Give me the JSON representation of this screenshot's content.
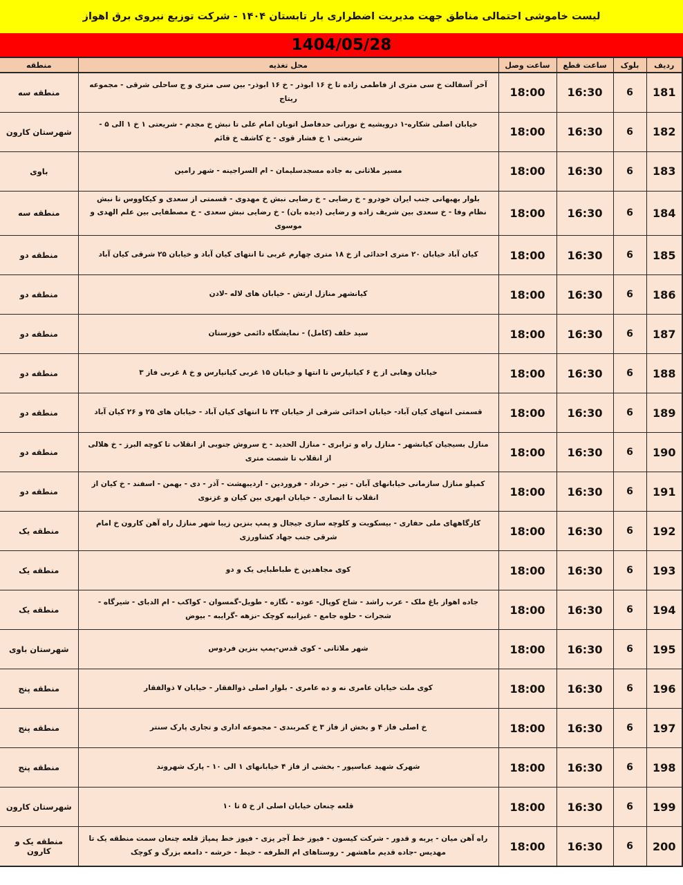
{
  "title": "لیست خاموشی احتمالی مناطق جهت مدیریت اضطراری بار تابستان ۱۴۰۴ - شرکت توزیع نیروی برق اهواز",
  "date": "1404/05/28",
  "colors": {
    "yellow": "#ffff00",
    "red": "#ff0000",
    "header-peach": "#f4cbac",
    "row-peach": "#fbe4d4",
    "border": "#262626"
  },
  "table": {
    "headers": {
      "radif": "ردیف",
      "block": "بلوک",
      "cut": "ساعت قطع",
      "reconnect": "ساعت وصل",
      "location": "محل تغذیه",
      "region": "منطقه"
    },
    "rows": [
      {
        "radif": "181",
        "block": "6",
        "cut": "16:30",
        "reconnect": "18:00",
        "location": "آخر آسفالت خ سی متری از فاطمی زاده تا خ ۱۶ ابوذر - خ ۱۶ ابوذر- بین سی متری و ج ساحلی شرقی - مجموعه ریتاج",
        "region": "منطقه سه"
      },
      {
        "radif": "182",
        "block": "6",
        "cut": "16:30",
        "reconnect": "18:00",
        "location": "خیابان اصلی شکاره-۱ درویشیه خ نورانی حدفاصل اتوبان امام علی تا نبش خ مجدم - شریعتی ۱ خ ۱ الی ۵ - شریعتی ۱ خ فشار قوی - خ کاشف خ قائم",
        "region": "شهرستان کارون"
      },
      {
        "radif": "183",
        "block": "6",
        "cut": "16:30",
        "reconnect": "18:00",
        "location": "مسیر ملاثانی به جاده مسجدسلیمان - ام السراجینه - شهر رامین",
        "region": "باوی"
      },
      {
        "radif": "184",
        "block": "6",
        "cut": "16:30",
        "reconnect": "18:00",
        "location": "بلوار بهبهانی جنب ایران خودرو - خ رضایی - خ رضایی نبش خ مهدوی - قسمتی از سعدی و کیکاووس تا نبش نظام وفا - خ سعدی بین شریف زاده و رضایی (دیده بان) - خ رضایی نبش سعدی - خ مصطفایی بین علم الهدی و موسوی",
        "region": "منطقه سه"
      },
      {
        "radif": "185",
        "block": "6",
        "cut": "16:30",
        "reconnect": "18:00",
        "location": "کیان آباد خیابان ۲۰ متری احدائی از خ ۱۸ متری چهارم غربی تا انتهای کیان آباد و خیابان ۲۵ شرقی کیان آباد",
        "region": "منطقه دو"
      },
      {
        "radif": "186",
        "block": "6",
        "cut": "16:30",
        "reconnect": "18:00",
        "location": "کیانشهر منازل ارتش - خیابان های لاله -لادن",
        "region": "منطقه دو"
      },
      {
        "radif": "187",
        "block": "6",
        "cut": "16:30",
        "reconnect": "18:00",
        "location": "سید خلف (کامل) - نمایشگاه دائمی خوزستان",
        "region": "منطقه دو"
      },
      {
        "radif": "188",
        "block": "6",
        "cut": "16:30",
        "reconnect": "18:00",
        "location": "خیابان وهابی از خ ۶ کیانپارس تا انتها و خیابان ۱۵ غربی کیانپارس و خ ۸ غربی فاز ۳",
        "region": "منطقه دو"
      },
      {
        "radif": "189",
        "block": "6",
        "cut": "16:30",
        "reconnect": "18:00",
        "location": "قسمتی انتهای کیان آباد- خیابان احدائی شرقی از خیابان ۲۴ تا انتهای کیان آباد - خیابان های ۲۵ و ۲۶ کیان آباد",
        "region": "منطقه دو"
      },
      {
        "radif": "190",
        "block": "6",
        "cut": "16:30",
        "reconnect": "18:00",
        "location": "منازل بسیجیان کیانشهر - منازل راه و ترابری - منازل الحدید - خ سروش جنوبی از انقلاب تا کوچه البرز - خ هلالی از انقلاب تا شصت متری",
        "region": "منطقه دو"
      },
      {
        "radif": "191",
        "block": "6",
        "cut": "16:30",
        "reconnect": "18:00",
        "location": "کمپلو منازل سازمانی خیابانهای آبان - تیر - خرداد - فروردین - اردیبهشت - آذر - دی - بهمن - اسفند - خ کیان از انقلاب تا انصاری - خیابان ابهری بین کیان و غزنوی",
        "region": "منطقه دو"
      },
      {
        "radif": "192",
        "block": "6",
        "cut": "16:30",
        "reconnect": "18:00",
        "location": "کارگاههای ملی حفاری - بیسکویت و کلوچه سازی جیجال و پمپ بنزین زیبا شهر منازل راه آهن کارون خ امام شرقی جنب جهاد کشاورزی",
        "region": "منطقه یک"
      },
      {
        "radif": "193",
        "block": "6",
        "cut": "16:30",
        "reconnect": "18:00",
        "location": "کوی مجاهدین خ طباطبایی یک و دو",
        "region": "منطقه یک"
      },
      {
        "radif": "194",
        "block": "6",
        "cut": "16:30",
        "reconnect": "18:00",
        "location": "جاده اهواز باغ ملک - عرب راشد - شاخ کوپال- عوده - نگازه - طویل-گمسوان - کواکب - ام الدبای - شیرگاه - شجرات - حلوه جامع - غیزانیه کوچک -نزهه -گرایبه - بیوض",
        "region": "منطقه یک"
      },
      {
        "radif": "195",
        "block": "6",
        "cut": "16:30",
        "reconnect": "18:00",
        "location": "شهر ملاثانی - کوی قدس-پمپ بنزین فردوس",
        "region": "شهرستان باوی"
      },
      {
        "radif": "196",
        "block": "6",
        "cut": "16:30",
        "reconnect": "18:00",
        "location": "کوی ملت خیابان عامری نه و ده عامری - بلوار اصلی ذوالفقار - خیابان ۷ ذوالفقار",
        "region": "منطقه پنج"
      },
      {
        "radif": "197",
        "block": "6",
        "cut": "16:30",
        "reconnect": "18:00",
        "location": "خ اصلی فاز ۴ و بخش از فاز ۳ خ کمربندی - مجموعه اداری و تجاری پارک سنتر",
        "region": "منطقه پنج"
      },
      {
        "radif": "198",
        "block": "6",
        "cut": "16:30",
        "reconnect": "18:00",
        "location": "شهرک شهید عباسپور - بخشی از فاز ۴ خیابانهای ۱ الی ۱۰ - پارک شهروند",
        "region": "منطقه پنج"
      },
      {
        "radif": "199",
        "block": "6",
        "cut": "16:30",
        "reconnect": "18:00",
        "location": "قلعه چنعان خیابان اصلی از خ ۵ تا ۱۰",
        "region": "شهرستان کارون"
      },
      {
        "radif": "200",
        "block": "6",
        "cut": "16:30",
        "reconnect": "18:00",
        "location": "راه آهن میان - یربه و قدور - شرکت کیسون - فیوز خط آجر پزی - فیوز خط پمپاژ قلعه چنعان سمت منطقه یک تا مهدیس -جاده قدیم ماهشهر - روستاهای ام الطرفه - خیط - خرشه - دامغه بزرگ و کوچک",
        "region": "منطقه یک و کارون"
      }
    ]
  }
}
